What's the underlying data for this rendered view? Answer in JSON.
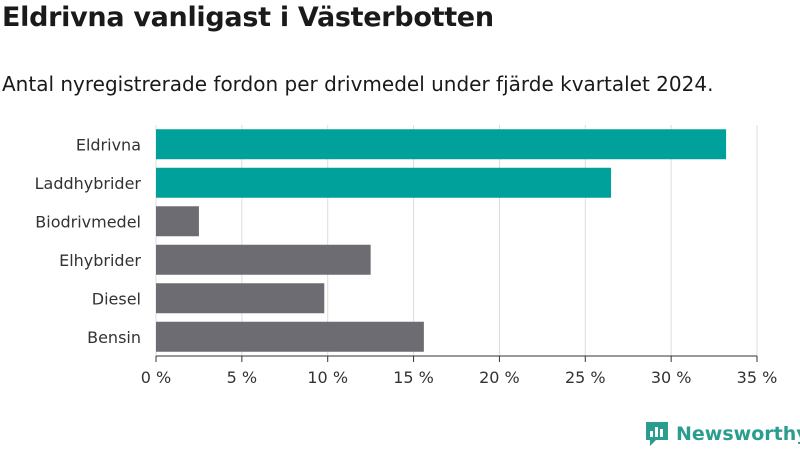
{
  "header": {
    "title": "Eldrivna vanligast i Västerbotten",
    "subtitle": "Antal nyregistrerade fordon per drivmedel under fjärde kvartalet 2024."
  },
  "brand": {
    "name": "Newsworthy",
    "icon": "newsworthy-logo-icon",
    "color": "#2a9d8f"
  },
  "chart_data": {
    "type": "bar",
    "orientation": "horizontal",
    "title": "",
    "xlabel": "",
    "ylabel": "",
    "categories": [
      "Eldrivna",
      "Laddhybrider",
      "Biodrivmedel",
      "Elhybrider",
      "Diesel",
      "Bensin"
    ],
    "values": [
      33.2,
      26.5,
      2.5,
      12.5,
      9.8,
      15.6
    ],
    "unit": "%",
    "xlim": [
      0,
      35
    ],
    "xticks": [
      0,
      5,
      10,
      15,
      20,
      25,
      30,
      35
    ],
    "xtick_labels": [
      "0 %",
      "5 %",
      "10 %",
      "15 %",
      "20 %",
      "25 %",
      "30 %",
      "35 %"
    ],
    "grid": true,
    "colors": {
      "highlight": "#00a19a",
      "default": "#6d6c72"
    },
    "highlighted": [
      "Eldrivna",
      "Laddhybrider"
    ]
  }
}
